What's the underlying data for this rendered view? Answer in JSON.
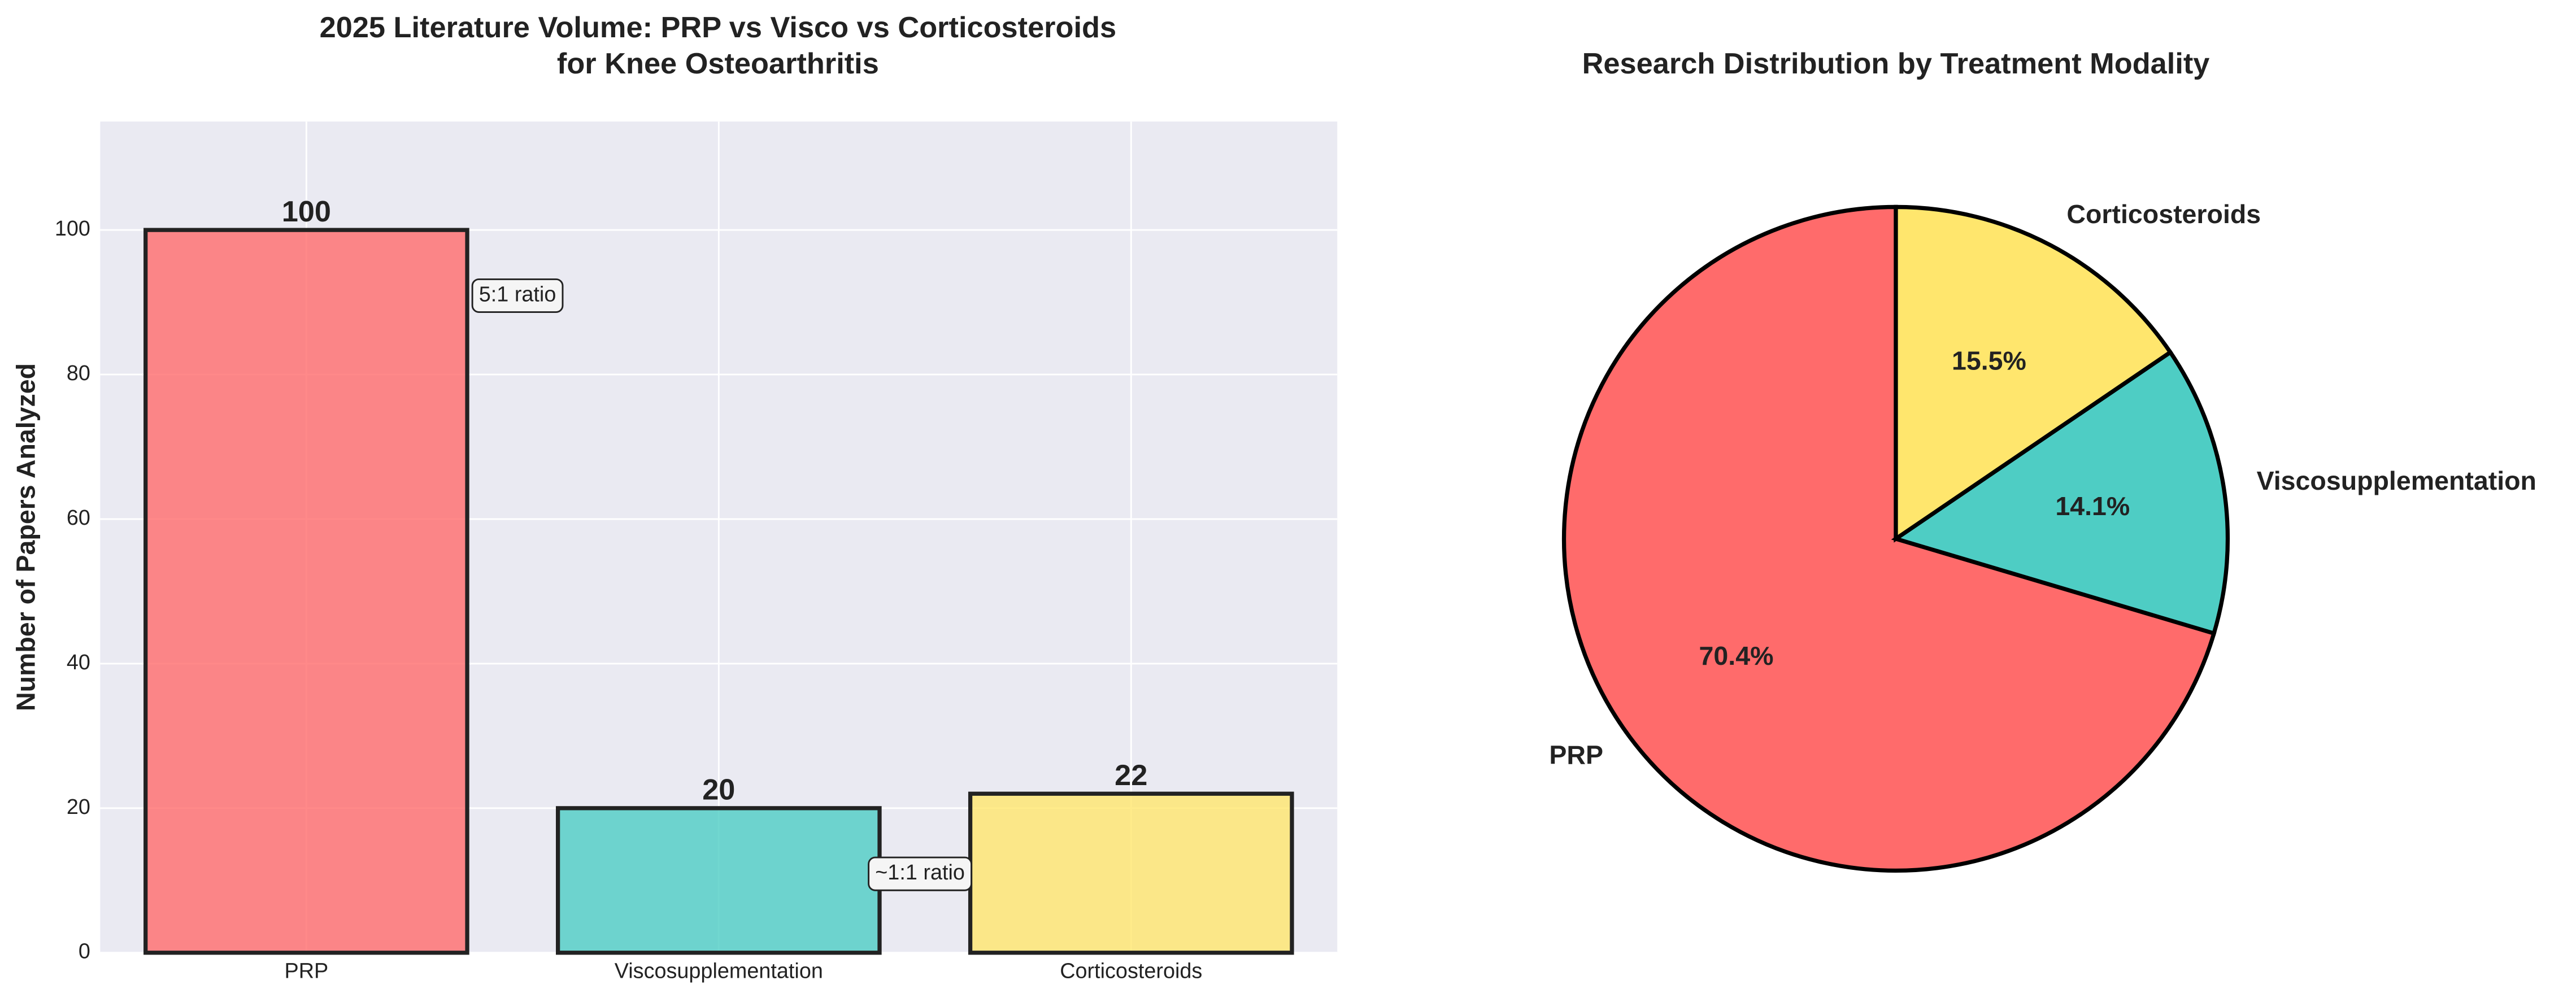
{
  "chart_data": [
    {
      "type": "bar",
      "title": [
        "2025 Literature Volume: PRP vs Visco vs Corticosteroids",
        "for Knee Osteoarthritis"
      ],
      "y_label": "Number of Papers Analyzed",
      "categories": [
        "PRP",
        "Viscosupplementation",
        "Corticosteroids"
      ],
      "values": [
        100,
        20,
        22
      ],
      "colors": [
        "#ff6b6b",
        "#4ecdc4",
        "#ffe66d"
      ],
      "ylim": [
        0,
        115
      ],
      "yticks": [
        0,
        20,
        40,
        60,
        80,
        100
      ],
      "grid": true,
      "annotations": [
        "5:1 ratio",
        "~1:1 ratio"
      ]
    },
    {
      "type": "pie",
      "title": "Research Distribution by Treatment Modality",
      "categories": [
        "PRP",
        "Viscosupplementation",
        "Corticosteroids"
      ],
      "values": [
        70.4,
        14.1,
        15.5
      ],
      "value_labels": [
        "70.4%",
        "14.1%",
        "15.5%"
      ],
      "colors": [
        "#ff6b6b",
        "#4ecdc4",
        "#ffe66d"
      ]
    }
  ]
}
